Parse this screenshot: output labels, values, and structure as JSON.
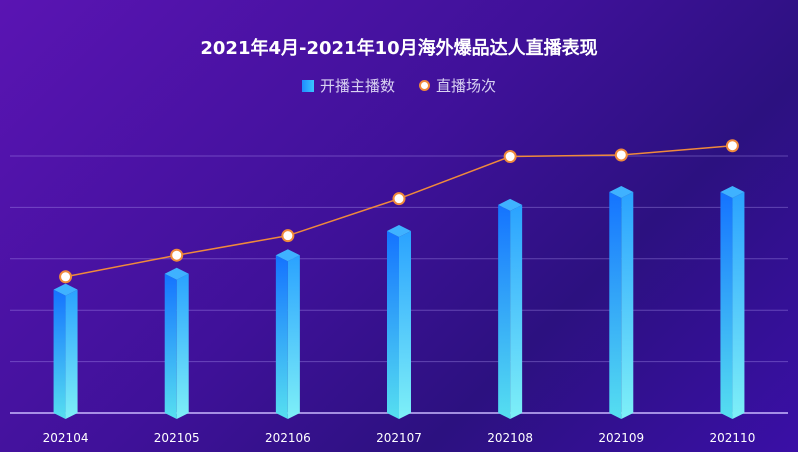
{
  "chart_data": {
    "type": "bar",
    "title": "2021年4月-2021年10月海外爆品达人直播表现",
    "categories": [
      "202104",
      "202105",
      "202106",
      "202107",
      "202108",
      "202109",
      "202110"
    ],
    "series": [
      {
        "name": "开播主播数",
        "type": "bar",
        "values": [
          2400,
          2710,
          3070,
          3540,
          4050,
          4300,
          4300
        ]
      },
      {
        "name": "直播场次",
        "type": "line",
        "values": [
          2650,
          3070,
          3450,
          4170,
          4990,
          5020,
          5200
        ]
      }
    ],
    "ylim": [
      0,
      5000
    ],
    "legend_position": "top-center",
    "grid": true,
    "colors": {
      "bar": "#1f8bff",
      "line": "#f08a3b",
      "marker_fill": "#ffffff"
    }
  }
}
